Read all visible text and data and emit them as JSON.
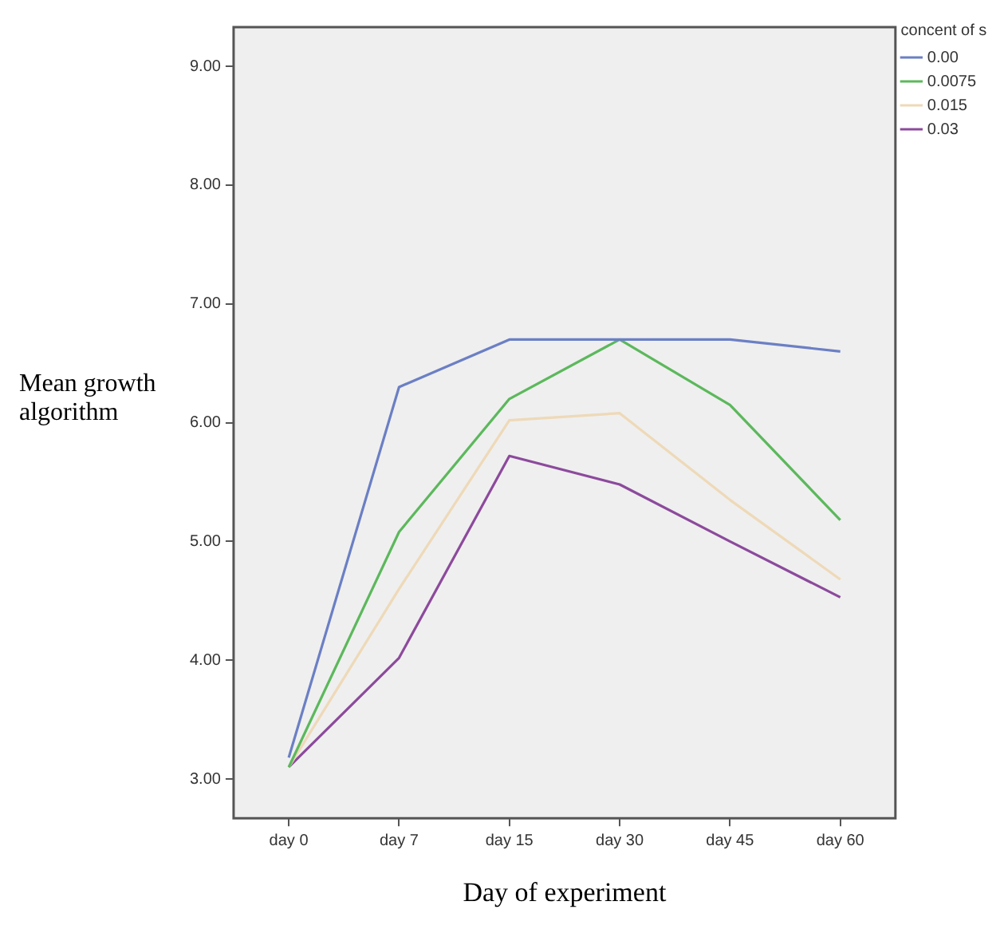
{
  "chart_data": {
    "type": "line",
    "xlabel": "Day of experiment",
    "ylabel": "Mean growth algorithm",
    "legend_title": "concent of s",
    "legend": "top right",
    "grid": false,
    "marker": "none",
    "line_style": "solid",
    "categories": [
      "day 0",
      "day 7",
      "day 15",
      "day 30",
      "day 45",
      "day 60"
    ],
    "ylim": [
      2.67,
      9.33
    ],
    "yticks": [
      {
        "value": 3,
        "label": "3.00"
      },
      {
        "value": 4,
        "label": "4.00"
      },
      {
        "value": 5,
        "label": "5.00"
      },
      {
        "value": 6,
        "label": "6.00"
      },
      {
        "value": 7,
        "label": "7.00"
      },
      {
        "value": 8,
        "label": "8.00"
      },
      {
        "value": 9,
        "label": "9.00"
      }
    ],
    "series": [
      {
        "name": "0.00",
        "color": "#6b7fc4",
        "values": [
          3.18,
          6.3,
          6.7,
          6.7,
          6.7,
          6.6
        ]
      },
      {
        "name": "0.0075",
        "color": "#5cb85c",
        "values": [
          3.1,
          5.08,
          6.2,
          6.7,
          6.15,
          5.18
        ]
      },
      {
        "name": "0.015",
        "color": "#eed9b8",
        "values": [
          3.1,
          4.6,
          6.02,
          6.08,
          5.35,
          4.68
        ]
      },
      {
        "name": "0.03",
        "color": "#8c4a9c",
        "values": [
          3.1,
          4.02,
          5.72,
          5.48,
          5.0,
          4.53
        ]
      }
    ]
  }
}
